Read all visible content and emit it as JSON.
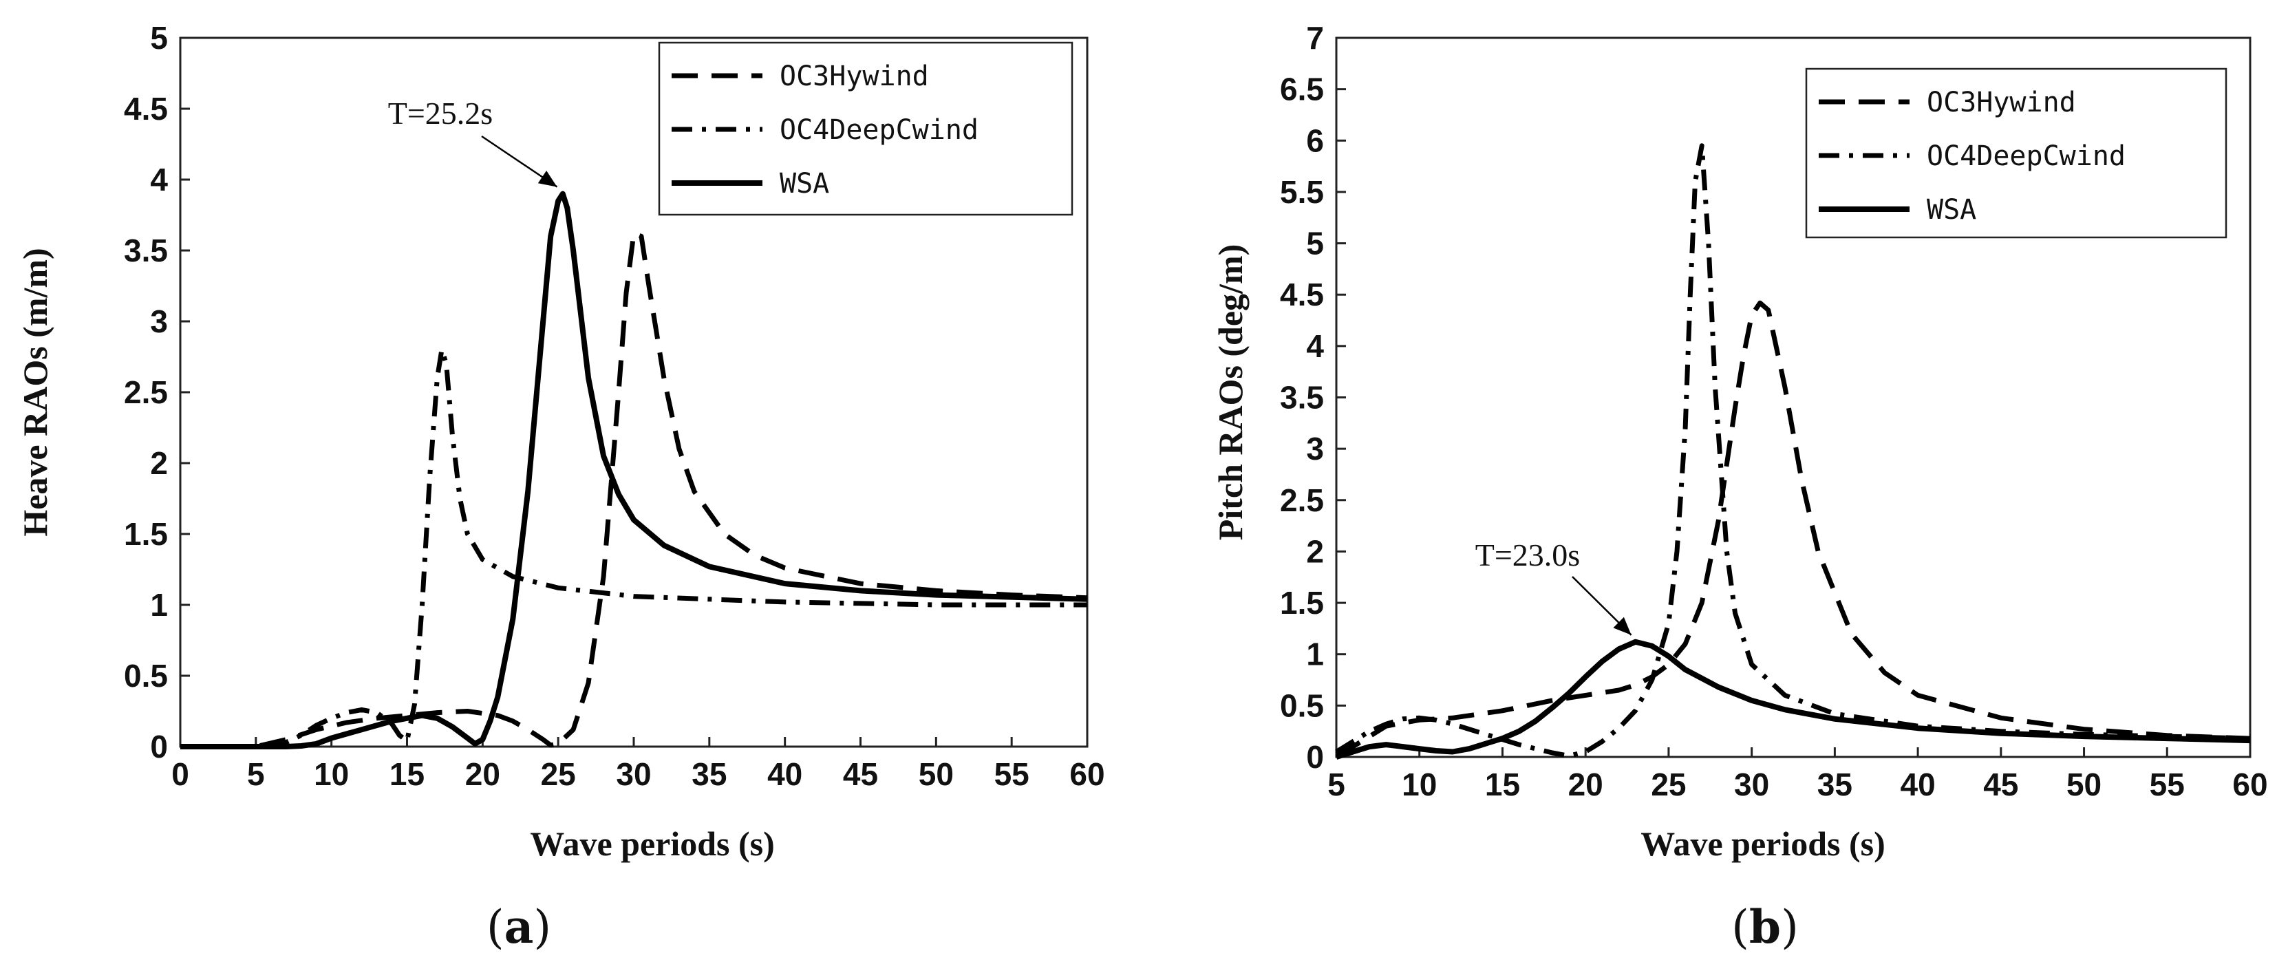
{
  "chart_data": [
    {
      "type": "line",
      "caption": {
        "open": "(",
        "letter": "a",
        "close": ")"
      },
      "xlabel": "Wave periods (s)",
      "ylabel": "Heave RAOs (m/m)",
      "xlim": [
        0,
        60
      ],
      "ylim": [
        0,
        5
      ],
      "xticks": [
        0,
        5,
        10,
        15,
        20,
        25,
        30,
        35,
        40,
        45,
        50,
        55,
        60
      ],
      "yticks": [
        0,
        0.5,
        1,
        1.5,
        2,
        2.5,
        3,
        3.5,
        4,
        4.5,
        5
      ],
      "legend_position": "top-right",
      "grid": false,
      "annotation": {
        "text": "T=25.2s",
        "x": 25.2,
        "y": 3.9
      },
      "series": [
        {
          "name": "OC3Hywind",
          "style": "dashed",
          "x": [
            0,
            5,
            7,
            9,
            11,
            13,
            15,
            17,
            19,
            21,
            22,
            23,
            24,
            24.5,
            25,
            26,
            27,
            28,
            29,
            29.5,
            30,
            30.5,
            31,
            32,
            33,
            34,
            36,
            38,
            40,
            45,
            50,
            55,
            60
          ],
          "y": [
            0,
            0,
            0.05,
            0.12,
            0.17,
            0.2,
            0.22,
            0.24,
            0.25,
            0.22,
            0.18,
            0.12,
            0.05,
            0.01,
            0.02,
            0.12,
            0.45,
            1.2,
            2.5,
            3.2,
            3.62,
            3.6,
            3.25,
            2.6,
            2.1,
            1.8,
            1.5,
            1.35,
            1.26,
            1.15,
            1.1,
            1.07,
            1.05
          ]
        },
        {
          "name": "OC4DeepCwind",
          "style": "dashdot",
          "x": [
            0,
            5,
            7,
            8,
            9,
            10,
            11,
            12,
            13,
            14,
            14.5,
            15,
            15.5,
            16,
            16.5,
            17,
            17.3,
            17.6,
            18,
            18.5,
            19,
            20,
            22,
            25,
            30,
            35,
            40,
            45,
            50,
            60
          ],
          "y": [
            0,
            0,
            0.03,
            0.08,
            0.15,
            0.2,
            0.24,
            0.26,
            0.24,
            0.16,
            0.08,
            0.04,
            0.3,
            1.0,
            1.9,
            2.6,
            2.8,
            2.7,
            2.2,
            1.75,
            1.5,
            1.32,
            1.2,
            1.12,
            1.06,
            1.04,
            1.02,
            1.01,
            1.0,
            1.0
          ]
        },
        {
          "name": "WSA",
          "style": "solid",
          "x": [
            0,
            7,
            8,
            9,
            10,
            12,
            14,
            16,
            17,
            18,
            19,
            19.5,
            20,
            20.5,
            21,
            22,
            23,
            24,
            24.5,
            25,
            25.3,
            25.6,
            26,
            27,
            28,
            29,
            30,
            32,
            35,
            40,
            45,
            50,
            60
          ],
          "y": [
            0,
            0,
            0.005,
            0.02,
            0.06,
            0.12,
            0.18,
            0.22,
            0.2,
            0.14,
            0.06,
            0.02,
            0.05,
            0.18,
            0.35,
            0.9,
            1.8,
            3.0,
            3.6,
            3.85,
            3.9,
            3.8,
            3.5,
            2.6,
            2.05,
            1.78,
            1.6,
            1.42,
            1.27,
            1.15,
            1.1,
            1.07,
            1.04
          ]
        }
      ]
    },
    {
      "type": "line",
      "caption": {
        "open": "(",
        "letter": "b",
        "close": ")"
      },
      "xlabel": "Wave periods (s)",
      "ylabel": "Pitch RAOs (deg/m)",
      "xlim": [
        5,
        60
      ],
      "ylim": [
        0,
        7
      ],
      "xticks": [
        5,
        10,
        15,
        20,
        25,
        30,
        35,
        40,
        45,
        50,
        55,
        60
      ],
      "yticks": [
        0,
        0.5,
        1,
        1.5,
        2,
        2.5,
        3,
        3.5,
        4,
        4.5,
        5,
        5.5,
        6,
        6.5,
        7
      ],
      "legend_position": "top-right",
      "grid": false,
      "annotation": {
        "text": "T=23.0s",
        "x": 23.0,
        "y": 1.12
      },
      "series": [
        {
          "name": "OC3Hywind",
          "style": "dashed",
          "x": [
            5,
            6,
            7,
            8,
            10,
            12,
            15,
            18,
            20,
            22,
            23,
            24,
            25,
            26,
            27,
            28,
            29,
            29.5,
            30,
            30.5,
            31,
            32,
            33,
            34,
            36,
            38,
            40,
            45,
            50,
            55,
            60
          ],
          "y": [
            0.03,
            0.1,
            0.2,
            0.3,
            0.36,
            0.38,
            0.45,
            0.55,
            0.6,
            0.65,
            0.7,
            0.78,
            0.9,
            1.1,
            1.5,
            2.3,
            3.4,
            3.9,
            4.3,
            4.42,
            4.35,
            3.6,
            2.7,
            2.0,
            1.2,
            0.82,
            0.6,
            0.38,
            0.27,
            0.21,
            0.18
          ]
        },
        {
          "name": "OC4DeepCwind",
          "style": "dashdot",
          "x": [
            5,
            6,
            7,
            8,
            9,
            10,
            11,
            12,
            14,
            16,
            18,
            19,
            20,
            21,
            22,
            23,
            24,
            25,
            25.5,
            26,
            26.3,
            26.6,
            27,
            27.4,
            27.8,
            28.5,
            29,
            30,
            32,
            35,
            40,
            45,
            50,
            55,
            60
          ],
          "y": [
            0.05,
            0.15,
            0.25,
            0.32,
            0.37,
            0.38,
            0.36,
            0.32,
            0.22,
            0.12,
            0.04,
            0.01,
            0.05,
            0.15,
            0.28,
            0.45,
            0.75,
            1.3,
            2.0,
            3.2,
            4.5,
            5.6,
            5.95,
            5.0,
            3.6,
            2.0,
            1.4,
            0.9,
            0.6,
            0.42,
            0.3,
            0.25,
            0.22,
            0.2,
            0.18
          ]
        },
        {
          "name": "WSA",
          "style": "solid",
          "x": [
            5,
            6,
            7,
            8,
            9,
            10,
            11,
            12,
            13,
            14,
            15,
            16,
            17,
            18,
            19,
            20,
            21,
            22,
            23,
            24,
            25,
            26,
            28,
            30,
            32,
            35,
            40,
            45,
            50,
            55,
            60
          ],
          "y": [
            0,
            0.05,
            0.1,
            0.12,
            0.1,
            0.08,
            0.06,
            0.05,
            0.08,
            0.13,
            0.18,
            0.25,
            0.35,
            0.48,
            0.62,
            0.78,
            0.93,
            1.05,
            1.12,
            1.08,
            0.98,
            0.85,
            0.68,
            0.55,
            0.46,
            0.37,
            0.28,
            0.23,
            0.2,
            0.18,
            0.16
          ]
        }
      ]
    }
  ]
}
